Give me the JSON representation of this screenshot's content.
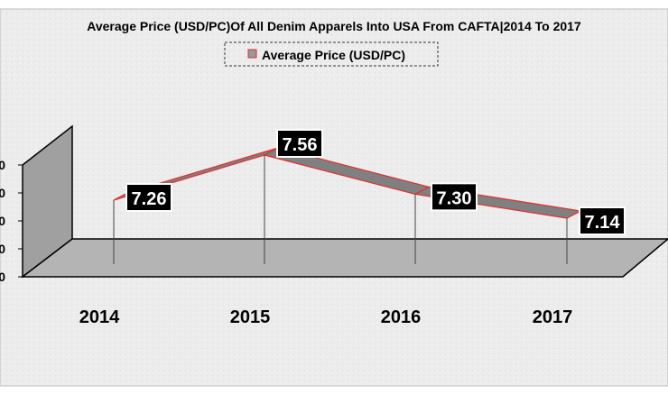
{
  "chart_data": {
    "type": "line",
    "title": "Average Price (USD/PC)Of All Denim Apparels Into USA From CAFTA|2014 To 2017",
    "legend": {
      "label": "Average Price (USD/PC)",
      "placement": "top"
    },
    "categories": [
      "2014",
      "2015",
      "2016",
      "2017"
    ],
    "series": [
      {
        "name": "Average Price (USD/PC)",
        "values": [
          7.26,
          7.56,
          7.3,
          7.14
        ]
      }
    ],
    "data_labels": [
      "7.26",
      "7.56",
      "7.30",
      "7.14"
    ],
    "y_tick_labels": [
      "0",
      "0",
      "0",
      "0",
      "0"
    ],
    "style": "3d-ribbon",
    "colors": {
      "ribbon": "#808080",
      "edge": "#e03030",
      "label_bg": "#000000",
      "label_text": "#ffffff",
      "wall": "#a0a0a0",
      "floor": "#b4b4b4"
    }
  }
}
